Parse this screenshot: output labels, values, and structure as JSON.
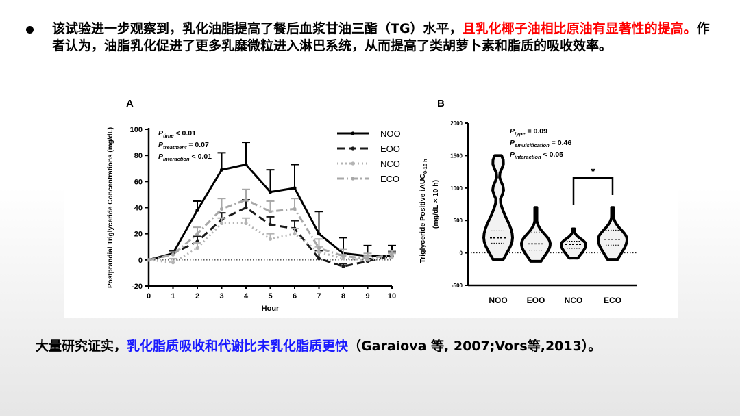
{
  "slide": {
    "bullet": {
      "part1": "该试验进一步观察到，乳化油脂提高了餐后血浆甘油三酯（TG）水平，",
      "part2_red": "且乳化椰子油相比原油有显著性的提高。",
      "part3": "作者认为，油脂乳化促进了更多乳糜微粒进入淋巴系统，从而提高了类胡萝卜素和脂质的吸收效率。"
    },
    "bottom": {
      "part1": "大量研究证实，",
      "part2_blue": "乳化脂质吸收和代谢比未乳化脂质更快",
      "part3": "（Garaiova 等, 2007;Vors等,2013）。"
    }
  },
  "colors": {
    "NOO": "#000000",
    "EOO": "#1a1a1a",
    "NCO": "#b4b4b4",
    "ECO": "#a8a8a8",
    "red_text": "#ff0000",
    "blue_text": "#1a1aff"
  },
  "chart_data": [
    {
      "panel": "A",
      "type": "line",
      "xlabel": "Hour",
      "ylabel": "Postprandial Triglyceride Concentrations (mg/dL)",
      "xlim": [
        0,
        10
      ],
      "ylim": [
        -20,
        100
      ],
      "xticks": [
        0,
        1,
        2,
        3,
        4,
        5,
        6,
        7,
        8,
        9,
        10
      ],
      "yticks": [
        -20,
        0,
        20,
        40,
        60,
        80,
        100
      ],
      "stats": [
        {
          "p": "P",
          "sub": "time",
          "rest": " < 0.01"
        },
        {
          "p": "P",
          "sub": "treatment",
          "rest": " = 0.07"
        },
        {
          "p": "P",
          "sub": "interaction",
          "rest": " < 0.01"
        }
      ],
      "legend_position": "top-right",
      "x": [
        0,
        1,
        2,
        3,
        4,
        5,
        6,
        7,
        8,
        9,
        10
      ],
      "series": [
        {
          "name": "NOO",
          "style": "solid",
          "values": [
            0,
            5,
            38,
            69,
            73,
            52,
            55,
            20,
            5,
            3,
            3
          ],
          "errors": [
            0,
            2,
            7,
            13,
            17,
            17,
            18,
            17,
            12,
            8,
            8
          ]
        },
        {
          "name": "EOO",
          "style": "dash",
          "values": [
            0,
            5,
            14,
            31,
            40,
            27,
            24,
            1,
            -5,
            -1,
            3
          ],
          "errors": [
            0,
            2,
            4,
            5,
            6,
            6,
            6,
            6,
            2,
            2,
            3
          ]
        },
        {
          "name": "NCO",
          "style": "dot",
          "values": [
            0,
            -2,
            9,
            28,
            28,
            16,
            20,
            6,
            1,
            0,
            2
          ],
          "errors": [
            0,
            3,
            4,
            4,
            4,
            4,
            4,
            4,
            3,
            3,
            3
          ]
        },
        {
          "name": "ECO",
          "style": "dashdot",
          "values": [
            0,
            4,
            20,
            39,
            46,
            37,
            39,
            9,
            3,
            1,
            4
          ],
          "errors": [
            0,
            2,
            5,
            8,
            8,
            8,
            8,
            7,
            5,
            4,
            3
          ]
        }
      ]
    },
    {
      "panel": "B",
      "type": "violin",
      "ylabel": "Triglyceride Positive iAUC",
      "ylabel_sub": "0-10 h",
      "ylabel_unit": "(mg/dL × 10 h)",
      "ylim": [
        -500,
        2000
      ],
      "yticks": [
        -500,
        0,
        500,
        1000,
        1500,
        2000
      ],
      "categories": [
        "NOO",
        "EOO",
        "NCO",
        "ECO"
      ],
      "stats": [
        {
          "p": "P",
          "sub": "type",
          "rest": " = 0.09"
        },
        {
          "p": "P",
          "sub": "emulsification",
          "rest": " = 0.46"
        },
        {
          "p": "P",
          "sub": "interaction",
          "rest": " < 0.05"
        }
      ],
      "significance": {
        "between": [
          "NCO",
          "ECO"
        ],
        "label": "*"
      },
      "violins": [
        {
          "name": "NOO",
          "min": -100,
          "max": 1500,
          "median": 230,
          "q1": 150,
          "q3": 340
        },
        {
          "name": "EOO",
          "min": -130,
          "max": 700,
          "median": 140,
          "q1": 40,
          "q3": 320
        },
        {
          "name": "NCO",
          "min": -80,
          "max": 370,
          "median": 130,
          "q1": 70,
          "q3": 180
        },
        {
          "name": "ECO",
          "min": -100,
          "max": 700,
          "median": 210,
          "q1": 120,
          "q3": 350
        }
      ]
    }
  ]
}
